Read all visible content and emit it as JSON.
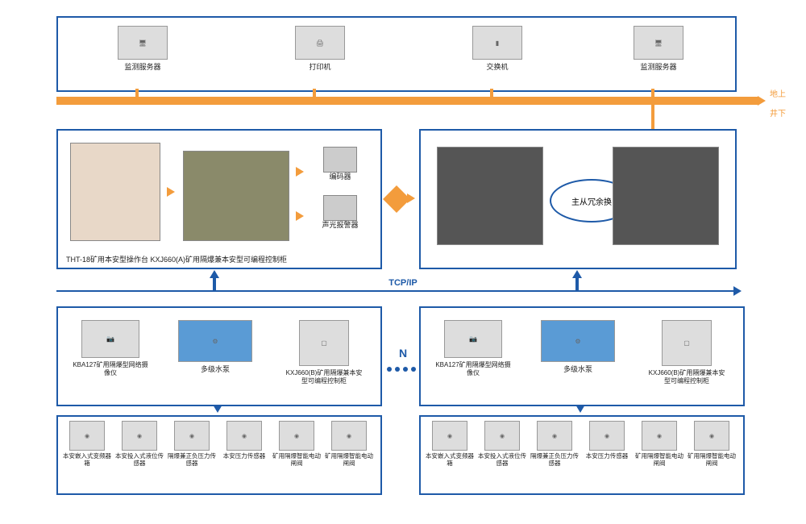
{
  "colors": {
    "border": "#1e5aa8",
    "orange": "#f39c3c",
    "blue": "#1e5aa8"
  },
  "side": {
    "above": "地上",
    "below": "井下"
  },
  "topRow": {
    "items": [
      {
        "label": "监测服务器",
        "icon": "PC"
      },
      {
        "label": "打印机",
        "icon": "打印"
      },
      {
        "label": "交换机",
        "icon": "交换"
      },
      {
        "label": "监测服务器",
        "icon": "PC"
      }
    ]
  },
  "midLeft": {
    "caption": "THT-18矿用本安型操作台  KXJ660(A)矿用隔爆兼本安型可编程控制柜",
    "smallItems": [
      {
        "label": "编码器"
      },
      {
        "label": "声光报警器"
      }
    ]
  },
  "midRight": {
    "ellipseLabel": "主从冗余换"
  },
  "tcpip": "TCP/IP",
  "nLabel": "N",
  "pumpGroups": [
    {
      "items": [
        {
          "label": "KBA127矿用隔爆型网络摄像仪",
          "icon": "摄像"
        },
        {
          "label": "多级水泵",
          "icon": "水泵"
        },
        {
          "label": "KXJ660(B)矿用隔爆兼本安型可编程控制柜",
          "icon": "控制柜"
        }
      ],
      "sensors": [
        {
          "label": "本安嵌入式变频器箱"
        },
        {
          "label": "本安投入式液位传感器"
        },
        {
          "label": "隔爆兼正负压力传感器"
        },
        {
          "label": "本安压力传感器"
        },
        {
          "label": "矿用隔爆智能电动闸阀"
        },
        {
          "label": "矿用隔爆智能电动闸阀"
        }
      ]
    },
    {
      "items": [
        {
          "label": "KBA127矿用隔爆型网络摄像仪",
          "icon": "摄像"
        },
        {
          "label": "多级水泵",
          "icon": "水泵"
        },
        {
          "label": "KXJ660(B)矿用隔爆兼本安型可编程控制柜",
          "icon": "控制柜"
        }
      ],
      "sensors": [
        {
          "label": "本安嵌入式变频器箱"
        },
        {
          "label": "本安投入式液位传感器"
        },
        {
          "label": "隔爆兼正负压力传感器"
        },
        {
          "label": "本安压力传感器"
        },
        {
          "label": "矿用隔爆智能电动闸阀"
        },
        {
          "label": "矿用隔爆智能电动闸阀"
        }
      ]
    }
  ]
}
